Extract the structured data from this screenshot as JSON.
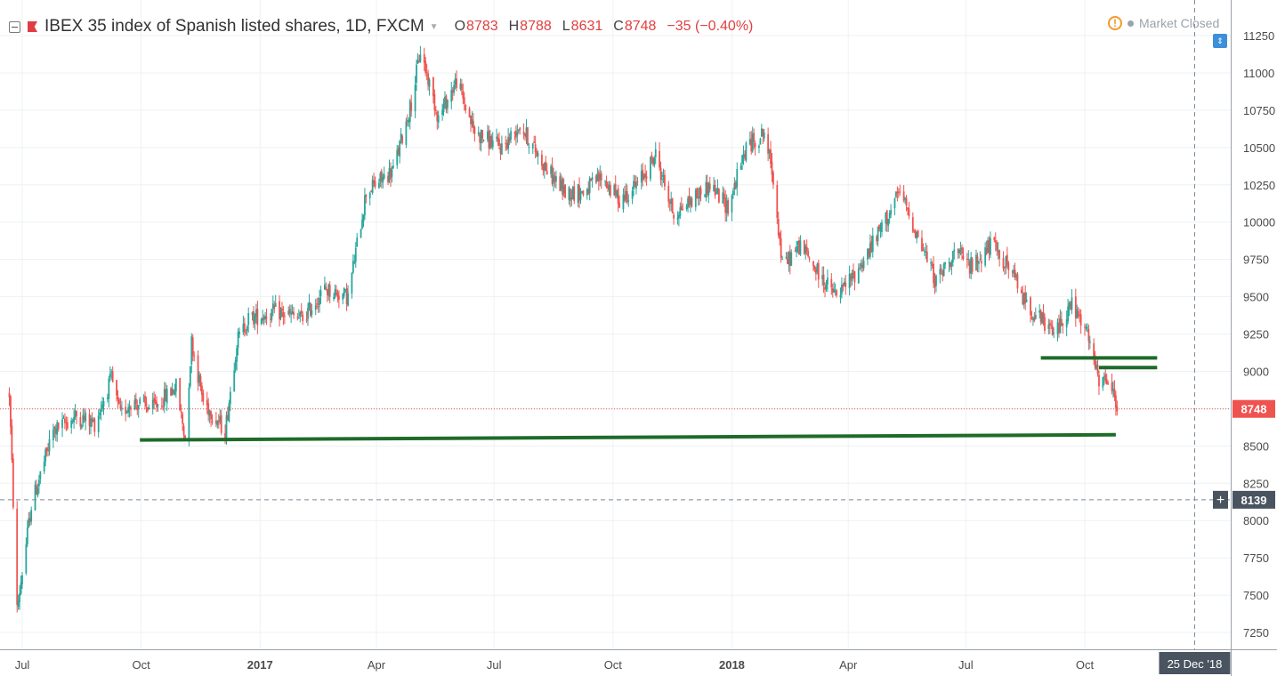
{
  "header": {
    "title": "IBEX 35 index of Spanish listed shares, 1D, FXCM",
    "ohlc": [
      {
        "label": "O",
        "value": "8783"
      },
      {
        "label": "H",
        "value": "8788"
      },
      {
        "label": "L",
        "value": "8631"
      },
      {
        "label": "C",
        "value": "8748"
      }
    ],
    "change": "−35 (−0.40%)",
    "market_status": "Market Closed"
  },
  "colors": {
    "up": "#26a69a",
    "down": "#ef5350",
    "support_line": "#1e6b2a",
    "price_line": "#ef5350",
    "crosshair": "#7b8896"
  },
  "chart_data": {
    "type": "candlestick",
    "y_range": [
      7150,
      11420
    ],
    "y_ticks": [
      7250,
      7500,
      7750,
      8000,
      8250,
      8500,
      8750,
      9000,
      9250,
      9500,
      9750,
      10000,
      10250,
      10500,
      10750,
      11000,
      11250
    ],
    "x_ticks": [
      {
        "label": "Jul",
        "date": "2016-07-01",
        "bold": false
      },
      {
        "label": "Oct",
        "date": "2016-10-01",
        "bold": false
      },
      {
        "label": "2017",
        "date": "2017-01-01",
        "bold": true
      },
      {
        "label": "Apr",
        "date": "2017-04-01",
        "bold": false
      },
      {
        "label": "Jul",
        "date": "2017-07-01",
        "bold": false
      },
      {
        "label": "Oct",
        "date": "2017-10-01",
        "bold": false
      },
      {
        "label": "2018",
        "date": "2018-01-01",
        "bold": true
      },
      {
        "label": "Apr",
        "date": "2018-04-01",
        "bold": false
      },
      {
        "label": "Jul",
        "date": "2018-07-01",
        "bold": false
      },
      {
        "label": "Oct",
        "date": "2018-10-01",
        "bold": false
      }
    ],
    "date_range": [
      "2016-06-21",
      "2018-12-31"
    ],
    "price_path": [
      [
        "2016-06-21",
        8850
      ],
      [
        "2016-06-27",
        7400
      ],
      [
        "2016-07-08",
        8100
      ],
      [
        "2016-07-25",
        8600
      ],
      [
        "2016-08-12",
        8700
      ],
      [
        "2016-08-26",
        8650
      ],
      [
        "2016-09-08",
        8950
      ],
      [
        "2016-09-15",
        8700
      ],
      [
        "2016-09-23",
        8800
      ],
      [
        "2016-10-10",
        8750
      ],
      [
        "2016-10-28",
        8900
      ],
      [
        "2016-11-04",
        8550
      ],
      [
        "2016-11-09",
        9200
      ],
      [
        "2016-11-18",
        8800
      ],
      [
        "2016-12-05",
        8600
      ],
      [
        "2016-12-14",
        9200
      ],
      [
        "2016-12-23",
        9350
      ],
      [
        "2017-01-13",
        9400
      ],
      [
        "2017-02-03",
        9350
      ],
      [
        "2017-02-20",
        9550
      ],
      [
        "2017-03-10",
        9500
      ],
      [
        "2017-03-24",
        10200
      ],
      [
        "2017-04-14",
        10350
      ],
      [
        "2017-04-28",
        10800
      ],
      [
        "2017-05-05",
        11150
      ],
      [
        "2017-05-19",
        10700
      ],
      [
        "2017-06-02",
        10950
      ],
      [
        "2017-06-16",
        10600
      ],
      [
        "2017-07-07",
        10500
      ],
      [
        "2017-07-21",
        10650
      ],
      [
        "2017-08-11",
        10350
      ],
      [
        "2017-08-25",
        10200
      ],
      [
        "2017-09-08",
        10200
      ],
      [
        "2017-09-22",
        10300
      ],
      [
        "2017-10-06",
        10150
      ],
      [
        "2017-10-20",
        10250
      ],
      [
        "2017-11-03",
        10450
      ],
      [
        "2017-11-17",
        10050
      ],
      [
        "2017-12-01",
        10150
      ],
      [
        "2017-12-15",
        10250
      ],
      [
        "2017-12-29",
        10100
      ],
      [
        "2018-01-12",
        10500
      ],
      [
        "2018-01-26",
        10600
      ],
      [
        "2018-02-02",
        10300
      ],
      [
        "2018-02-09",
        9700
      ],
      [
        "2018-02-23",
        9850
      ],
      [
        "2018-03-09",
        9650
      ],
      [
        "2018-03-23",
        9500
      ],
      [
        "2018-04-06",
        9650
      ],
      [
        "2018-04-20",
        9850
      ],
      [
        "2018-05-11",
        10200
      ],
      [
        "2018-05-25",
        9900
      ],
      [
        "2018-06-08",
        9600
      ],
      [
        "2018-06-22",
        9800
      ],
      [
        "2018-07-06",
        9700
      ],
      [
        "2018-07-20",
        9850
      ],
      [
        "2018-08-03",
        9700
      ],
      [
        "2018-08-17",
        9450
      ],
      [
        "2018-09-07",
        9250
      ],
      [
        "2018-09-21",
        9450
      ],
      [
        "2018-10-05",
        9200
      ],
      [
        "2018-10-12",
        8900
      ],
      [
        "2018-10-19",
        8950
      ],
      [
        "2018-10-26",
        8750
      ]
    ],
    "support_lines": [
      {
        "from": [
          "2016-09-30",
          8540
        ],
        "to": [
          "2018-10-25",
          8575
        ]
      },
      {
        "from": [
          "2018-08-28",
          9090
        ],
        "to": [
          "2018-11-26",
          9090
        ]
      },
      {
        "from": [
          "2018-10-12",
          9025
        ],
        "to": [
          "2018-11-26",
          9025
        ]
      }
    ],
    "last_price": 8748,
    "crosshair": {
      "price": 8139,
      "date": "2018-12-25",
      "date_label": "25 Dec '18"
    }
  }
}
